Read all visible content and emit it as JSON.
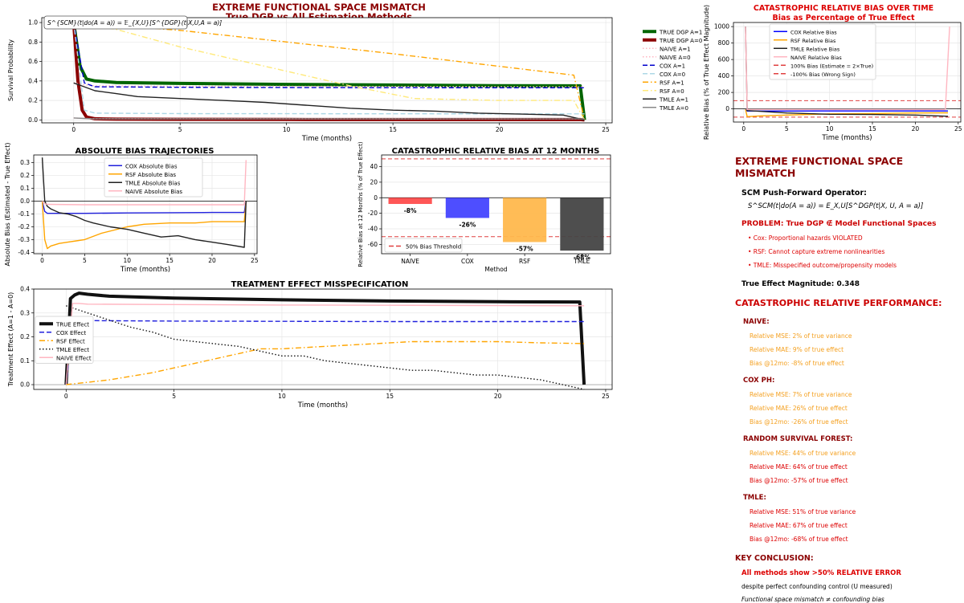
{
  "chart_data": [
    {
      "id": "survival",
      "type": "line",
      "title": "EXTREME FUNCTIONAL SPACE MISMATCH",
      "subtitle": "True DGP vs All Estimation Methods",
      "xlabel": "Time (months)",
      "ylabel": "Survival Probability",
      "xlim": [
        -1.5,
        25.3
      ],
      "ylim": [
        -0.03,
        1.05
      ],
      "xticks": [
        0,
        5,
        10,
        15,
        20,
        25
      ],
      "yticks": [
        0.0,
        0.2,
        0.4,
        0.6,
        0.8,
        1.0
      ],
      "annotation": "S^{SCM}(t|do(A = a)) = 𝔼_{X,U}[S^{DGP}(t|X,U,A = a)]",
      "grid": true,
      "legend_position": "outside-right",
      "series": [
        {
          "name": "TRUE DGP A=1",
          "color": "#006400",
          "style": "thick",
          "x": [
            0,
            0.3,
            0.6,
            1,
            2,
            5,
            10,
            15,
            20,
            23.8,
            24
          ],
          "y": [
            1.0,
            0.55,
            0.42,
            0.4,
            0.385,
            0.375,
            0.365,
            0.358,
            0.352,
            0.35,
            0.0
          ]
        },
        {
          "name": "TRUE DGP A=0",
          "color": "#8b0000",
          "style": "thick",
          "x": [
            0,
            0.2,
            0.4,
            0.6,
            1,
            2,
            5,
            10,
            15,
            20,
            23.8,
            24
          ],
          "y": [
            1.0,
            0.4,
            0.1,
            0.03,
            0.012,
            0.008,
            0.006,
            0.005,
            0.004,
            0.004,
            0.004,
            0.0
          ]
        },
        {
          "name": "NAIVE A=1",
          "color": "#ffb6c1",
          "style": "dotted",
          "x": [
            0,
            0.5,
            1,
            5,
            10,
            15,
            20,
            24
          ],
          "y": [
            0.38,
            0.36,
            0.35,
            0.345,
            0.345,
            0.343,
            0.342,
            0.34
          ]
        },
        {
          "name": "NAIVE A=0",
          "color": "#ffb6c1",
          "style": "dotted",
          "x": [
            0,
            0.5,
            1,
            5,
            10,
            15,
            20,
            24
          ],
          "y": [
            0.02,
            0.015,
            0.012,
            0.012,
            0.011,
            0.011,
            0.01,
            0.01
          ]
        },
        {
          "name": "COX A=1",
          "color": "#0000cc",
          "style": "dashed",
          "x": [
            0,
            0.5,
            1,
            5,
            10,
            15,
            20,
            24
          ],
          "y": [
            1.0,
            0.38,
            0.34,
            0.335,
            0.333,
            0.331,
            0.33,
            0.33
          ]
        },
        {
          "name": "COX A=0",
          "color": "#add8e6",
          "style": "dashed",
          "x": [
            0,
            0.5,
            1,
            5,
            10,
            15,
            20,
            24
          ],
          "y": [
            1.0,
            0.1,
            0.07,
            0.065,
            0.064,
            0.063,
            0.062,
            0.062
          ]
        },
        {
          "name": "RSF A=1",
          "color": "#ffa500",
          "style": "dashdot",
          "x": [
            0,
            2,
            5,
            10,
            15,
            20,
            23.5,
            24
          ],
          "y": [
            1.0,
            0.97,
            0.92,
            0.8,
            0.68,
            0.55,
            0.46,
            0.0
          ]
        },
        {
          "name": "RSF A=0",
          "color": "#ffe97a",
          "style": "dashdot",
          "x": [
            0,
            2,
            5,
            10,
            13,
            16,
            20,
            23.5,
            24
          ],
          "y": [
            1.0,
            0.93,
            0.75,
            0.5,
            0.35,
            0.22,
            0.2,
            0.2,
            0.0
          ]
        },
        {
          "name": "TMLE A=1",
          "color": "#222222",
          "style": "solid",
          "x": [
            0,
            0.5,
            1,
            2,
            3,
            5,
            7,
            9,
            11,
            13,
            15,
            17,
            19,
            21,
            23,
            24
          ],
          "y": [
            0.38,
            0.34,
            0.3,
            0.27,
            0.24,
            0.22,
            0.2,
            0.18,
            0.15,
            0.12,
            0.1,
            0.09,
            0.07,
            0.06,
            0.05,
            0.0
          ]
        },
        {
          "name": "TMLE A=0",
          "color": "#888888",
          "style": "solid",
          "x": [
            0,
            0.5,
            1,
            5,
            10,
            15,
            20,
            24
          ],
          "y": [
            0.02,
            0.015,
            0.01,
            0.01,
            0.01,
            0.01,
            0.01,
            0.01
          ]
        }
      ]
    },
    {
      "id": "relbias",
      "type": "line",
      "title": "CATASTROPHIC RELATIVE BIAS OVER TIME",
      "subtitle": "Bias as Percentage of True Effect",
      "xlabel": "Time (months)",
      "ylabel": "Relative Bias (% of True Effect Magnitude)",
      "xlim": [
        -1.2,
        25.3
      ],
      "ylim": [
        -160,
        1050
      ],
      "xticks": [
        0,
        5,
        10,
        15,
        20,
        25
      ],
      "yticks": [
        0,
        200,
        400,
        600,
        800,
        1000
      ],
      "grid": true,
      "legend_position": "top-left",
      "series": [
        {
          "name": "COX Relative Bias",
          "color": "#0000ff",
          "x": [
            0.2,
            0.4,
            5,
            10,
            15,
            20,
            23.8
          ],
          "y": [
            -5,
            -26,
            -26,
            -25,
            -25,
            -25,
            -25
          ]
        },
        {
          "name": "RSF Relative Bias",
          "color": "#ffa500",
          "x": [
            0.2,
            0.4,
            2,
            5,
            10,
            15,
            20,
            23.8
          ],
          "y": [
            -5,
            -95,
            -85,
            -75,
            -60,
            -57,
            -50,
            -48
          ]
        },
        {
          "name": "TMLE Relative Bias",
          "color": "#222222",
          "x": [
            0.2,
            0.4,
            2,
            5,
            10,
            15,
            20,
            23.8
          ],
          "y": [
            1000,
            -20,
            -30,
            -50,
            -65,
            -68,
            -75,
            -90
          ]
        },
        {
          "name": "NAIVE Relative Bias",
          "color": "#ffb6c1",
          "x": [
            0.2,
            0.4,
            5,
            10,
            15,
            20,
            23.5,
            24
          ],
          "y": [
            1000,
            -8,
            -8,
            -8,
            -8,
            -8,
            -8,
            1000
          ]
        }
      ],
      "reference_lines": [
        {
          "name": "100% Bias (Estimate = 2×True)",
          "y": 100,
          "color": "#e04040"
        },
        {
          "name": "-100% Bias (Wrong Sign)",
          "y": -100,
          "color": "#e04040"
        }
      ]
    },
    {
      "id": "absbias",
      "type": "line",
      "title": "ABSOLUTE BIAS TRAJECTORIES",
      "xlabel": "Time (months)",
      "ylabel": "Absolute Bias (Estimated - True Effect)",
      "xlim": [
        -1.0,
        25.3
      ],
      "ylim": [
        -0.41,
        0.36
      ],
      "xticks": [
        0,
        5,
        10,
        15,
        20,
        25
      ],
      "yticks": [
        -0.4,
        -0.3,
        -0.2,
        -0.1,
        0.0,
        0.1,
        0.2,
        0.3
      ],
      "grid": true,
      "legend_position": "top-right",
      "series": [
        {
          "name": "COX Absolute Bias",
          "color": "#2020dd",
          "x": [
            0,
            0.3,
            0.6,
            5,
            10,
            15,
            20,
            23.8,
            24
          ],
          "y": [
            0.0,
            -0.08,
            -0.095,
            -0.095,
            -0.092,
            -0.09,
            -0.088,
            -0.088,
            0.0
          ]
        },
        {
          "name": "RSF Absolute Bias",
          "color": "#ffa500",
          "x": [
            0,
            0.3,
            0.6,
            1,
            2,
            3,
            4,
            5,
            7,
            10,
            12,
            15,
            18,
            20,
            23.8,
            24
          ],
          "y": [
            0.0,
            -0.3,
            -0.37,
            -0.35,
            -0.33,
            -0.32,
            -0.31,
            -0.3,
            -0.25,
            -0.2,
            -0.18,
            -0.17,
            -0.17,
            -0.16,
            -0.16,
            0.0
          ]
        },
        {
          "name": "TMLE Absolute Bias",
          "color": "#222222",
          "x": [
            0,
            0.3,
            0.6,
            1,
            2,
            3,
            4,
            5,
            6,
            8,
            10,
            12,
            14,
            16,
            18,
            20,
            22,
            23.8,
            24
          ],
          "y": [
            0.34,
            0.0,
            -0.04,
            -0.06,
            -0.09,
            -0.1,
            -0.12,
            -0.15,
            -0.17,
            -0.2,
            -0.22,
            -0.25,
            -0.28,
            -0.27,
            -0.3,
            -0.32,
            -0.34,
            -0.36,
            0.0
          ]
        },
        {
          "name": "NAIVE Absolute Bias",
          "color": "#ffb6c1",
          "x": [
            0,
            0.3,
            0.6,
            5,
            10,
            15,
            20,
            23.8,
            24
          ],
          "y": [
            0.0,
            -0.02,
            -0.025,
            -0.028,
            -0.028,
            -0.028,
            -0.028,
            -0.028,
            0.32
          ]
        }
      ]
    },
    {
      "id": "bar12",
      "type": "bar",
      "title": "CATASTROPHIC RELATIVE BIAS AT 12 MONTHS",
      "xlabel": "Method",
      "ylabel": "Relative Bias at 12 Months (% of True Effect)",
      "ylim": [
        -72,
        55
      ],
      "yticks": [
        -60,
        -40,
        -20,
        0,
        20,
        40
      ],
      "categories": [
        "NAIVE",
        "COX",
        "RSF",
        "TMLE"
      ],
      "values": [
        -8,
        -26,
        -57,
        -68
      ],
      "labels": [
        "-8%",
        "-26%",
        "-57%",
        "-68%"
      ],
      "colors": [
        "#ff4d4d",
        "#4444ff",
        "#ffb84d",
        "#444444"
      ],
      "reference_lines": [
        {
          "name": "50% Bias Threshold",
          "y": 50,
          "color": "#e04040"
        },
        {
          "name": "50% Bias Threshold",
          "y": -50,
          "color": "#e04040"
        }
      ],
      "legend_position": "bottom-left",
      "grid": true
    },
    {
      "id": "teffect",
      "type": "line",
      "title": "TREATMENT EFFECT MISSPECIFICATION",
      "xlabel": "Time (months)",
      "ylabel": "Treatment Effect (A=1 - A=0)",
      "xlim": [
        -1.5,
        25.3
      ],
      "ylim": [
        -0.02,
        0.4
      ],
      "xticks": [
        0,
        5,
        10,
        15,
        20,
        25
      ],
      "yticks": [
        0.0,
        0.1,
        0.2,
        0.3,
        0.4
      ],
      "grid": true,
      "legend_position": "center-left",
      "series": [
        {
          "name": "TRUE Effect",
          "color": "#111111",
          "style": "thick",
          "x": [
            0,
            0.2,
            0.4,
            0.6,
            1,
            2,
            5,
            10,
            15,
            20,
            23.8,
            24
          ],
          "y": [
            0.0,
            0.36,
            0.375,
            0.383,
            0.378,
            0.37,
            0.362,
            0.355,
            0.35,
            0.347,
            0.346,
            0.0
          ]
        },
        {
          "name": "COX Effect",
          "color": "#2020dd",
          "style": "dashed",
          "x": [
            0,
            0.3,
            0.6,
            1,
            5,
            10,
            15,
            20,
            24
          ],
          "y": [
            0.0,
            0.27,
            0.27,
            0.268,
            0.266,
            0.265,
            0.264,
            0.264,
            0.264
          ]
        },
        {
          "name": "RSF Effect",
          "color": "#ffa500",
          "style": "dashdot",
          "x": [
            0,
            1,
            2,
            3,
            4,
            5,
            6,
            7,
            8,
            9,
            10,
            12,
            14,
            16,
            18,
            20,
            22,
            24
          ],
          "y": [
            0.0,
            0.01,
            0.02,
            0.035,
            0.05,
            0.07,
            0.09,
            0.11,
            0.13,
            0.15,
            0.15,
            0.16,
            0.17,
            0.18,
            0.18,
            0.18,
            0.175,
            0.172
          ]
        },
        {
          "name": "TMLE Effect",
          "color": "#111111",
          "style": "dotted",
          "x": [
            0,
            1,
            2,
            3,
            4,
            5,
            6,
            7,
            8,
            9,
            10,
            11,
            12,
            13,
            14,
            15,
            16,
            17,
            18,
            19,
            20,
            21,
            22,
            23,
            24
          ],
          "y": [
            0.33,
            0.3,
            0.27,
            0.24,
            0.22,
            0.19,
            0.18,
            0.17,
            0.16,
            0.14,
            0.12,
            0.12,
            0.1,
            0.09,
            0.08,
            0.07,
            0.06,
            0.06,
            0.05,
            0.04,
            0.04,
            0.03,
            0.02,
            0.0,
            -0.02
          ]
        },
        {
          "name": "NAIVE Effect",
          "color": "#ffb6c1",
          "style": "solid",
          "x": [
            0,
            0.3,
            0.6,
            1,
            5,
            10,
            15,
            20,
            24
          ],
          "y": [
            0.0,
            0.34,
            0.34,
            0.337,
            0.335,
            0.333,
            0.332,
            0.331,
            0.33
          ]
        }
      ]
    }
  ],
  "side": {
    "title": "EXTREME FUNCTIONAL SPACE MISMATCH",
    "scm_label": "SCM Push-Forward Operator:",
    "formula": "S^SCM(t|do(A = a)) = E_X,U[S^DGP(t|X, U, A = a)]",
    "problem": "PROBLEM: True DGP ∉ Model Functional Spaces",
    "bullets": [
      "• Cox: Proportional hazards VIOLATED",
      "• RSF: Cannot capture extreme nonlinearities",
      "• TMLE: Misspecified outcome/propensity models"
    ],
    "magnitude": "True Effect Magnitude: 0.348",
    "perf_title": "CATASTROPHIC RELATIVE PERFORMANCE:",
    "methods": [
      {
        "name": "NAIVE:",
        "lines": [
          {
            "text": "Relative MSE: 2% of true variance",
            "color": "#f4a020"
          },
          {
            "text": "Relative MAE: 9% of true effect",
            "color": "#f4a020"
          },
          {
            "text": "Bias @12mo: -8% of true effect",
            "color": "#f4a020"
          }
        ]
      },
      {
        "name": "COX PH:",
        "lines": [
          {
            "text": "Relative MSE: 7% of true variance",
            "color": "#f4a020"
          },
          {
            "text": "Relative MAE: 26% of true effect",
            "color": "#f4a020"
          },
          {
            "text": "Bias @12mo: -26% of true effect",
            "color": "#f4a020"
          }
        ]
      },
      {
        "name": "RANDOM SURVIVAL FOREST:",
        "lines": [
          {
            "text": "Relative MSE: 44% of true variance",
            "color": "#f4a020"
          },
          {
            "text": "Relative MAE: 64% of true effect",
            "color": "#dd0000"
          },
          {
            "text": "Bias @12mo: -57% of true effect",
            "color": "#dd0000"
          }
        ]
      },
      {
        "name": "TMLE:",
        "lines": [
          {
            "text": "Relative MSE: 51% of true variance",
            "color": "#dd0000"
          },
          {
            "text": "Relative MAE: 67% of true effect",
            "color": "#dd0000"
          },
          {
            "text": "Bias @12mo: -68% of true effect",
            "color": "#dd0000"
          }
        ]
      }
    ],
    "key_title": "KEY CONCLUSION:",
    "key_line1": "All methods show >50% RELATIVE ERROR",
    "key_line2": "despite perfect confounding control (U measured)",
    "key_line3": "Functional space mismatch ≠ confounding bias"
  }
}
